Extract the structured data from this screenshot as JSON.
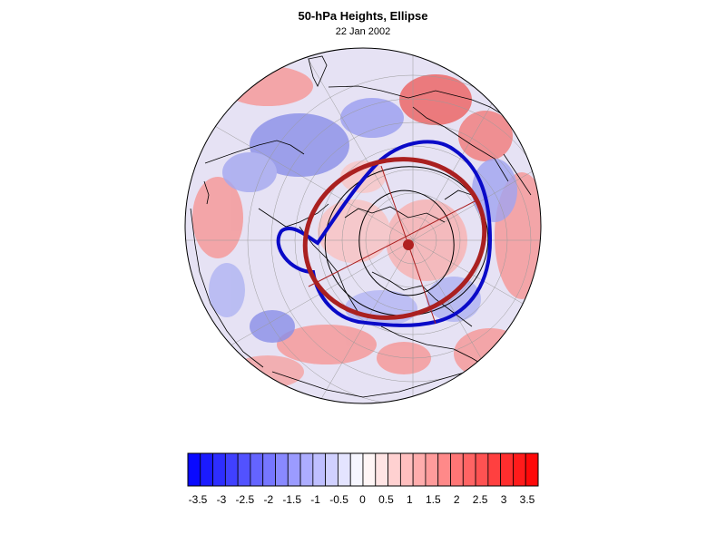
{
  "title": "50-hPa Heights, Ellipse",
  "subtitle": "22 Jan 2002",
  "colorbar": {
    "labels": [
      "-3.5",
      "-3",
      "-2.5",
      "-2",
      "-1.5",
      "-1",
      "-0.5",
      "0",
      "0.5",
      "1",
      "1.5",
      "2",
      "2.5",
      "3",
      "3.5"
    ],
    "min": -3.5,
    "max": 3.5,
    "n_bins": 28,
    "cold_color": "#0000ff",
    "neutral_color": "#ffffff",
    "warm_color": "#ff0000"
  },
  "overlays": {
    "contour_color": "#0a0ac8",
    "ellipse_color": "#aa2020",
    "center_marker_color": "#b02020"
  }
}
